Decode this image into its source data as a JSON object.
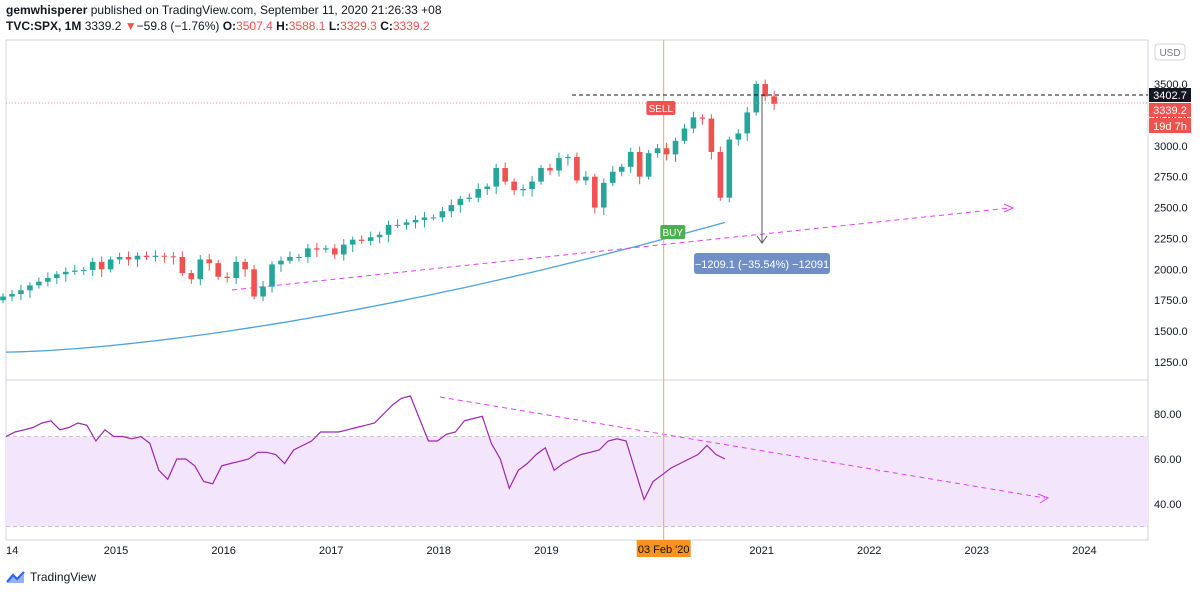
{
  "header": {
    "publisher": "gemwhisperer",
    "published_text": "published on TradingView.com, September 11, 2020 21:26:33 +08",
    "symbol": "TVC:SPX, 1M",
    "last": "3339.2",
    "change_arrow": "▼",
    "change": "−59.8 (−1.76%)",
    "o_label": "O:",
    "o": "3507.4",
    "h_label": "H:",
    "h": "3588.1",
    "l_label": "L:",
    "l": "3329.3",
    "c_label": "C:",
    "c": "3339.2"
  },
  "footer": {
    "brand": "TradingView",
    "logo_icon": "tradingview-logo-icon"
  },
  "colors": {
    "up": "#26a69a",
    "down": "#ef5350",
    "ma": "#4aa3df",
    "rsi": "#9c27b0",
    "trend": "#e040fb",
    "band": "#f3e5fb",
    "crosshair": "#e7b24a",
    "measure": "#6f8fc6"
  },
  "chart_data": [
    {
      "type": "candlestick",
      "title": "",
      "currency": "USD",
      "x_ticks": [
        "14",
        "2015",
        "2016",
        "2017",
        "2018",
        "2019",
        "2020",
        "2021",
        "2022",
        "2023",
        "2024"
      ],
      "y_ticks": [
        1250,
        1500,
        1750,
        2000,
        2250,
        2500,
        2750,
        3000,
        3250,
        3500
      ],
      "ylim": [
        1130,
        3700
      ],
      "close_series": [
        1780,
        1800,
        1830,
        1870,
        1900,
        1930,
        1960,
        1980,
        1990,
        1995,
        2060,
        2000,
        2080,
        2100,
        2080,
        2110,
        2100,
        2110,
        2105,
        2100,
        1970,
        1920,
        2080,
        2050,
        1940,
        1930,
        2060,
        2000,
        1780,
        1860,
        2040,
        2070,
        2100,
        2100,
        2170,
        2160,
        2170,
        2120,
        2200,
        2240,
        2230,
        2260,
        2280,
        2360,
        2360,
        2380,
        2400,
        2420,
        2420,
        2470,
        2520,
        2570,
        2580,
        2650,
        2670,
        2820,
        2710,
        2640,
        2650,
        2710,
        2820,
        2800,
        2900,
        2910,
        2720,
        2750,
        2500,
        2700,
        2790,
        2830,
        2950,
        2750,
        2940,
        2980,
        2930,
        3040,
        3140,
        3230,
        3220,
        2950,
        2580,
        3050,
        3100,
        3270,
        3500,
        3400,
        3339.2
      ],
      "ma_series_label": "",
      "markers": [
        {
          "text": "SELL",
          "date": "Feb 2020"
        },
        {
          "text": "BUY",
          "date": "Apr 2020"
        }
      ],
      "price_labels": {
        "level": "3402.7",
        "last": "3339.2",
        "countdown": "19d 7h"
      },
      "measure_label": "−1209.1 (−35.54%) −12091",
      "crosshair_date": "03 Feb '20",
      "trendline_start": {
        "date": "Feb 2016",
        "value": 1830
      },
      "trendline_end": {
        "date": "Jun 2023",
        "value": 2500
      }
    },
    {
      "type": "line",
      "title": "",
      "y_ticks": [
        40,
        60,
        80
      ],
      "ylim": [
        27,
        92
      ],
      "band": [
        30,
        70
      ],
      "values": [
        70,
        72,
        73,
        74,
        76,
        77,
        73,
        74,
        76,
        75,
        68,
        73,
        70,
        70,
        69,
        70,
        67,
        55,
        51,
        60,
        60,
        57,
        50,
        49,
        57,
        58,
        59,
        60,
        63,
        63,
        62,
        58,
        64,
        66,
        68,
        72,
        72,
        72,
        73,
        74,
        75,
        76,
        80,
        84,
        87,
        88,
        78,
        68,
        68,
        71,
        72,
        77,
        78,
        79,
        67,
        60,
        47,
        55,
        58,
        62,
        65,
        55,
        58,
        60,
        62,
        63,
        64,
        68,
        69,
        68,
        55,
        42,
        50,
        53,
        56,
        58,
        60,
        62,
        66,
        62,
        60
      ],
      "trendline_start_value": 88,
      "trendline_end_value": 42
    }
  ]
}
